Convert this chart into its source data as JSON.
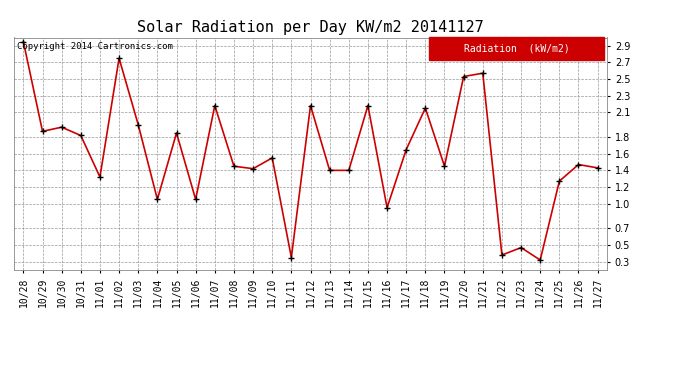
{
  "title": "Solar Radiation per Day KW/m2 20141127",
  "copyright_text": "Copyright 2014 Cartronics.com",
  "legend_label": "Radiation  (kW/m2)",
  "dates": [
    "10/28",
    "10/29",
    "10/30",
    "10/31",
    "11/01",
    "11/02",
    "11/03",
    "11/04",
    "11/05",
    "11/06",
    "11/07",
    "11/08",
    "11/09",
    "11/10",
    "11/11",
    "11/12",
    "11/13",
    "11/14",
    "11/15",
    "11/16",
    "11/17",
    "11/18",
    "11/19",
    "11/20",
    "11/21",
    "11/22",
    "11/23",
    "11/24",
    "11/25",
    "11/26",
    "11/27"
  ],
  "values": [
    2.95,
    1.87,
    1.92,
    1.82,
    1.32,
    2.75,
    1.95,
    1.05,
    1.85,
    1.05,
    2.18,
    1.45,
    1.42,
    1.55,
    0.35,
    2.18,
    1.4,
    1.4,
    2.18,
    0.95,
    1.65,
    2.15,
    1.45,
    2.53,
    2.57,
    0.38,
    0.47,
    0.32,
    1.27,
    1.47,
    1.43
  ],
  "ylim": [
    0.2,
    3.0
  ],
  "yticks": [
    0.3,
    0.5,
    0.7,
    1.0,
    1.2,
    1.4,
    1.6,
    1.8,
    2.1,
    2.3,
    2.5,
    2.7,
    2.9
  ],
  "line_color": "#cc0000",
  "marker_color": "black",
  "bg_color": "#ffffff",
  "plot_bg_color": "#ffffff",
  "grid_color": "#999999",
  "title_fontsize": 11,
  "tick_fontsize": 7,
  "copyright_fontsize": 6.5,
  "legend_bg": "#cc0000",
  "legend_text_color": "#ffffff",
  "legend_fontsize": 7
}
